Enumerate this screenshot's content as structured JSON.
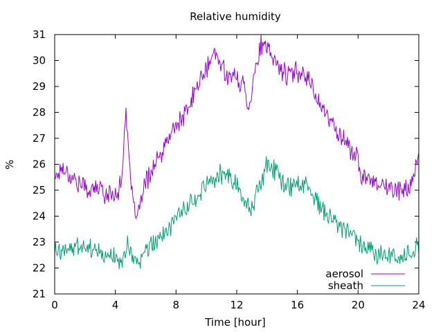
{
  "chart_data": {
    "type": "line",
    "title": "Relative humidity",
    "xlabel": "Time [hour]",
    "ylabel": "%",
    "xlim": [
      0,
      24
    ],
    "ylim": [
      21,
      31
    ],
    "xticks": [
      0,
      4,
      8,
      12,
      16,
      20,
      24
    ],
    "yticks": [
      21,
      22,
      23,
      24,
      25,
      26,
      27,
      28,
      29,
      30,
      31
    ],
    "grid": false,
    "legend_position": "bottom-right",
    "series": [
      {
        "name": "aerosol",
        "color": "#9400d3",
        "points": [
          [
            0.0,
            25.5
          ],
          [
            0.5,
            25.9
          ],
          [
            1.0,
            25.6
          ],
          [
            1.5,
            25.3
          ],
          [
            2.0,
            25.1
          ],
          [
            2.5,
            25.0
          ],
          [
            3.0,
            25.1
          ],
          [
            3.5,
            24.8
          ],
          [
            4.0,
            24.9
          ],
          [
            4.4,
            25.2
          ],
          [
            4.7,
            28.3
          ],
          [
            4.9,
            26.0
          ],
          [
            5.2,
            24.2
          ],
          [
            5.5,
            24.1
          ],
          [
            6.0,
            25.3
          ],
          [
            6.5,
            25.9
          ],
          [
            7.0,
            26.3
          ],
          [
            7.5,
            27.0
          ],
          [
            8.0,
            27.5
          ],
          [
            8.5,
            27.8
          ],
          [
            9.0,
            28.4
          ],
          [
            9.5,
            29.2
          ],
          [
            10.0,
            29.6
          ],
          [
            10.5,
            30.3
          ],
          [
            11.0,
            29.8
          ],
          [
            11.5,
            29.4
          ],
          [
            12.0,
            29.3
          ],
          [
            12.5,
            29.0
          ],
          [
            12.8,
            28.2
          ],
          [
            13.2,
            29.6
          ],
          [
            13.6,
            30.6
          ],
          [
            14.0,
            30.4
          ],
          [
            14.5,
            30.0
          ],
          [
            15.0,
            29.6
          ],
          [
            15.5,
            29.4
          ],
          [
            16.0,
            29.6
          ],
          [
            16.5,
            29.5
          ],
          [
            17.0,
            29.0
          ],
          [
            17.5,
            28.3
          ],
          [
            18.0,
            27.8
          ],
          [
            18.5,
            27.4
          ],
          [
            19.0,
            27.0
          ],
          [
            19.5,
            26.6
          ],
          [
            20.0,
            26.2
          ],
          [
            20.2,
            25.3
          ],
          [
            20.5,
            25.6
          ],
          [
            21.0,
            25.4
          ],
          [
            21.5,
            25.3
          ],
          [
            22.0,
            25.0
          ],
          [
            22.5,
            25.1
          ],
          [
            23.0,
            24.9
          ],
          [
            23.5,
            25.3
          ],
          [
            24.0,
            26.1
          ]
        ]
      },
      {
        "name": "sheath",
        "color": "#009e73",
        "points": [
          [
            0.0,
            22.6
          ],
          [
            0.5,
            22.7
          ],
          [
            1.0,
            22.8
          ],
          [
            1.5,
            22.9
          ],
          [
            2.0,
            22.6
          ],
          [
            2.5,
            22.7
          ],
          [
            3.0,
            22.5
          ],
          [
            3.5,
            22.3
          ],
          [
            4.0,
            22.4
          ],
          [
            4.5,
            22.1
          ],
          [
            4.8,
            23.0
          ],
          [
            5.0,
            22.6
          ],
          [
            5.3,
            22.2
          ],
          [
            5.7,
            22.3
          ],
          [
            6.0,
            22.7
          ],
          [
            6.5,
            23.0
          ],
          [
            7.0,
            23.2
          ],
          [
            7.5,
            23.5
          ],
          [
            8.0,
            23.8
          ],
          [
            8.5,
            24.2
          ],
          [
            9.0,
            24.4
          ],
          [
            9.5,
            24.7
          ],
          [
            10.0,
            25.1
          ],
          [
            10.5,
            25.4
          ],
          [
            11.0,
            25.6
          ],
          [
            11.5,
            25.5
          ],
          [
            12.0,
            25.2
          ],
          [
            12.5,
            24.6
          ],
          [
            13.0,
            24.3
          ],
          [
            13.5,
            25.2
          ],
          [
            14.0,
            26.0
          ],
          [
            14.5,
            25.8
          ],
          [
            15.0,
            25.4
          ],
          [
            15.5,
            25.0
          ],
          [
            16.0,
            25.2
          ],
          [
            16.5,
            25.2
          ],
          [
            17.0,
            24.8
          ],
          [
            17.5,
            24.4
          ],
          [
            18.0,
            24.1
          ],
          [
            18.5,
            23.8
          ],
          [
            19.0,
            23.5
          ],
          [
            19.5,
            23.3
          ],
          [
            20.0,
            22.9
          ],
          [
            20.5,
            22.7
          ],
          [
            21.0,
            22.6
          ],
          [
            21.5,
            22.5
          ],
          [
            22.0,
            22.5
          ],
          [
            22.5,
            22.3
          ],
          [
            23.0,
            22.4
          ],
          [
            23.5,
            22.6
          ],
          [
            24.0,
            22.8
          ]
        ]
      }
    ]
  }
}
